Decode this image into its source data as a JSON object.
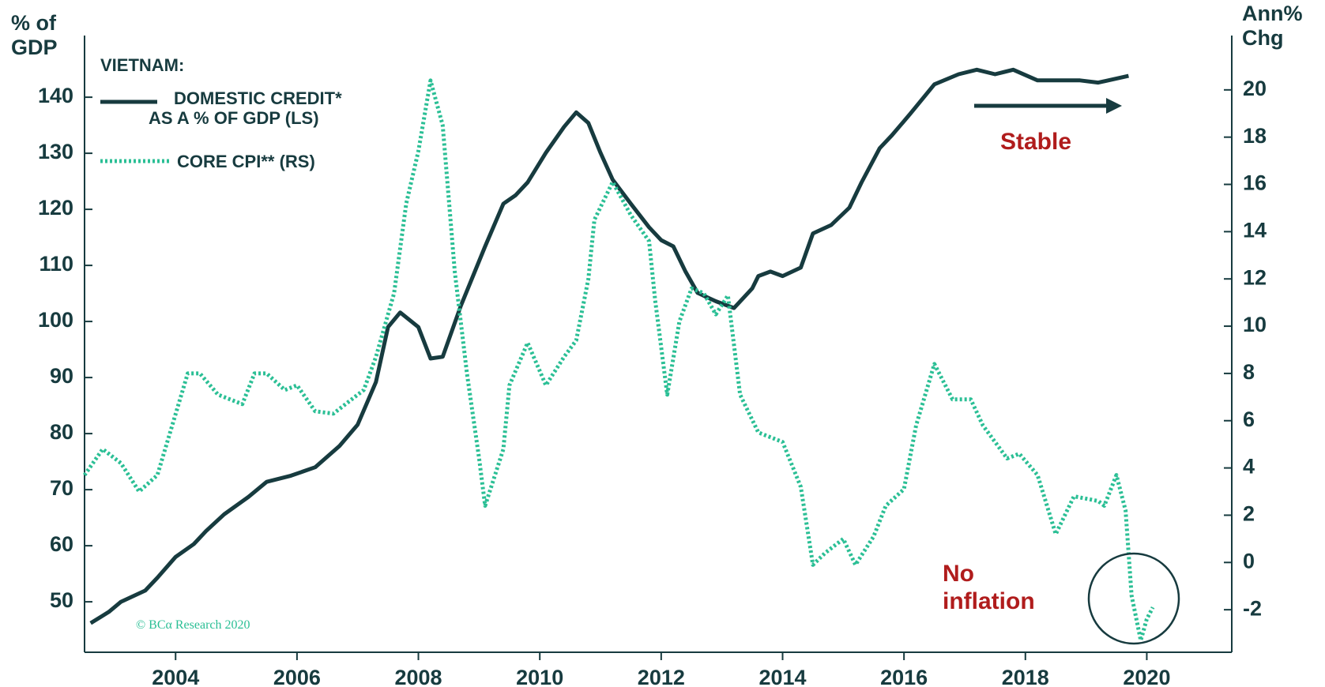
{
  "chart_data": {
    "type": "line",
    "y_label": "% of\nGDP",
    "y2_label": "Ann%\nChg",
    "legend_title": "VIETNAM:",
    "annotations": [
      "Stable",
      "No\ninflation"
    ],
    "credit_note": "© BCα Research 2020",
    "xlim": [
      2002.5,
      2021.4
    ],
    "xticks": [
      2004,
      2006,
      2008,
      2010,
      2012,
      2014,
      2016,
      2018,
      2020
    ],
    "ylim": [
      41,
      151
    ],
    "yticks": [
      50,
      60,
      70,
      80,
      90,
      100,
      110,
      120,
      130,
      140
    ],
    "y2lim": [
      -3.8,
      22.3
    ],
    "y2ticks": [
      -2,
      0,
      2,
      4,
      6,
      8,
      10,
      12,
      14,
      16,
      18,
      20
    ],
    "series": [
      {
        "name": "DOMESTIC CREDIT*\nAS A % OF GDP (LS)",
        "color": "#173b3f",
        "style": "solid",
        "x": [
          2002.6,
          2002.9,
          2003.1,
          2003.5,
          2003.7,
          2004.0,
          2004.3,
          2004.5,
          2004.8,
          2005.2,
          2005.5,
          2005.9,
          2006.3,
          2006.7,
          2007.0,
          2007.3,
          2007.5,
          2007.7,
          2008.0,
          2008.2,
          2008.4,
          2008.7,
          2009.1,
          2009.4,
          2009.6,
          2009.8,
          2010.1,
          2010.4,
          2010.6,
          2010.8,
          2011.0,
          2011.2,
          2011.5,
          2011.8,
          2012.0,
          2012.2,
          2012.4,
          2012.6,
          2012.9,
          2013.2,
          2013.5,
          2013.6,
          2013.8,
          2014.0,
          2014.3,
          2014.5,
          2014.8,
          2015.1,
          2015.3,
          2015.6,
          2015.8,
          2016.1,
          2016.5,
          2016.9,
          2017.2,
          2017.5,
          2017.8,
          2018.2,
          2018.4,
          2018.9,
          2019.2,
          2019.7
        ],
        "values": [
          46.2,
          48.2,
          50,
          52,
          54.3,
          58,
          60.3,
          62.6,
          65.6,
          68.7,
          71.4,
          72.5,
          74,
          77.8,
          81.6,
          89.2,
          99,
          101.6,
          99,
          93.4,
          93.7,
          102.8,
          113.4,
          121,
          122.5,
          124.8,
          130.1,
          134.7,
          137.3,
          135.4,
          130.1,
          125.3,
          121,
          116.8,
          114.5,
          113.4,
          108.9,
          105.1,
          103.6,
          102.4,
          105.9,
          108.1,
          108.9,
          108.1,
          109.6,
          115.7,
          117.2,
          120.3,
          124.8,
          130.9,
          133.2,
          137,
          142.3,
          144.1,
          144.9,
          144.1,
          144.9,
          143,
          143,
          143,
          142.6,
          143.8
        ]
      },
      {
        "name": "CORE CPI** (RS)",
        "color": "#2bbf95",
        "style": "dotted",
        "axis": "y2",
        "x": [
          2002.5,
          2002.8,
          2003.1,
          2003.4,
          2003.7,
          2004.2,
          2004.4,
          2004.7,
          2005.1,
          2005.3,
          2005.5,
          2005.8,
          2006.0,
          2006.3,
          2006.6,
          2006.9,
          2007.1,
          2007.3,
          2007.6,
          2007.8,
          2008.0,
          2008.2,
          2008.4,
          2008.6,
          2008.8,
          2009.0,
          2009.1,
          2009.4,
          2009.5,
          2009.8,
          2009.9,
          2010.1,
          2010.4,
          2010.6,
          2010.8,
          2010.9,
          2011.2,
          2011.5,
          2011.8,
          2011.9,
          2012.1,
          2012.3,
          2012.5,
          2012.7,
          2012.9,
          2013.1,
          2013.3,
          2013.6,
          2014.0,
          2014.3,
          2014.5,
          2014.7,
          2015.0,
          2015.2,
          2015.5,
          2015.7,
          2016.0,
          2016.2,
          2016.5,
          2016.8,
          2017.1,
          2017.3,
          2017.7,
          2017.9,
          2018.2,
          2018.5,
          2018.8,
          2019.2,
          2019.3,
          2019.5,
          2019.65,
          2019.75,
          2019.9,
          2020.0,
          2020.1
        ],
        "values": [
          3.7,
          4.8,
          4.2,
          3.0,
          3.7,
          8.0,
          8.0,
          7.1,
          6.7,
          8.0,
          8.0,
          7.3,
          7.5,
          6.4,
          6.3,
          6.9,
          7.3,
          8.7,
          11.4,
          15.2,
          17.4,
          20.4,
          18.5,
          12.3,
          8.0,
          4.4,
          2.4,
          4.8,
          7.5,
          9.3,
          8.7,
          7.5,
          8.7,
          9.4,
          12.0,
          14.5,
          16.1,
          14.7,
          13.6,
          11.1,
          7.1,
          10.2,
          11.6,
          11.4,
          10.5,
          11.3,
          7.1,
          5.5,
          5.1,
          3.2,
          -0.1,
          0.4,
          1.0,
          -0.1,
          1.1,
          2.4,
          3.1,
          5.8,
          8.4,
          6.9,
          6.9,
          5.8,
          4.4,
          4.6,
          3.7,
          1.2,
          2.8,
          2.6,
          2.4,
          3.7,
          2.2,
          -1.4,
          -3.3,
          -2.4,
          -1.9
        ]
      }
    ]
  }
}
